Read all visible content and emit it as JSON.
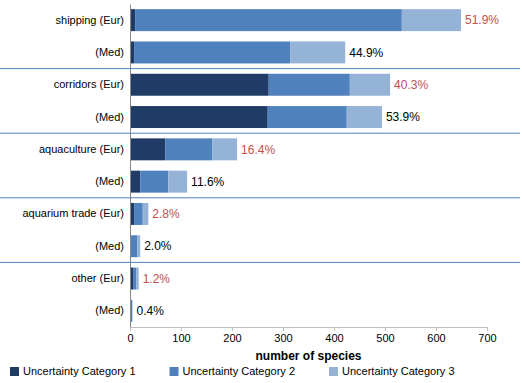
{
  "chart_data": {
    "type": "bar",
    "orientation": "horizontal",
    "stacked": true,
    "x_label": "number of species",
    "categories": [
      "shipping (Eur)",
      "(Med)",
      "corridors (Eur)",
      "(Med)",
      "aquaculture (Eur)",
      "(Med)",
      "aquarium trade (Eur)",
      "(Med)",
      "other (Eur)",
      "(Med)"
    ],
    "series": [
      {
        "name": "Uncertainty Category 1",
        "color": "#1f3b66",
        "values": [
          10,
          8,
          272,
          270,
          69,
          20,
          8,
          2,
          6,
          1
        ]
      },
      {
        "name": "Uncertainty Category 2",
        "color": "#4f81bd",
        "values": [
          523,
          306,
          159,
          155,
          92,
          55,
          17,
          12,
          6,
          3
        ]
      },
      {
        "name": "Uncertainty Category 3",
        "color": "#95b3d7",
        "values": [
          116,
          108,
          79,
          69,
          49,
          37,
          11,
          6,
          5,
          1
        ]
      }
    ],
    "annotations": [
      {
        "text": "51.9%",
        "color": "#c0504d"
      },
      {
        "text": "44.9%",
        "color": "#000000"
      },
      {
        "text": "40.3%",
        "color": "#c0504d"
      },
      {
        "text": "53.9%",
        "color": "#000000"
      },
      {
        "text": "16.4%",
        "color": "#c0504d"
      },
      {
        "text": "11.6%",
        "color": "#000000"
      },
      {
        "text": "2.8%",
        "color": "#c0504d"
      },
      {
        "text": "2.0%",
        "color": "#000000"
      },
      {
        "text": "1.2%",
        "color": "#c0504d"
      },
      {
        "text": "0.4%",
        "color": "#000000"
      }
    ],
    "xlim": [
      0,
      700
    ],
    "xticks": [
      0,
      100,
      200,
      300,
      400,
      500,
      600,
      700
    ],
    "grid": false,
    "legend": "bottom"
  }
}
